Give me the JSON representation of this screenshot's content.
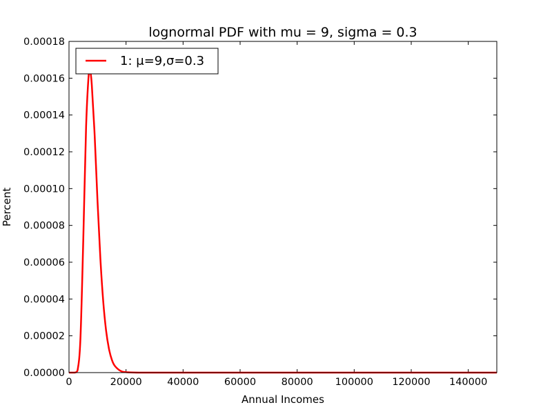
{
  "chart_data": {
    "type": "line",
    "title": "lognormal PDF with mu = 9, sigma = 0.3",
    "xlabel": "Annual Incomes",
    "ylabel": "Percent",
    "xlim": [
      0,
      150000
    ],
    "ylim": [
      0,
      0.00018
    ],
    "grid": false,
    "legend_position": "top-left",
    "x_ticks": [
      "0",
      "20000",
      "40000",
      "60000",
      "80000",
      "100000",
      "120000",
      "140000"
    ],
    "y_ticks": [
      "0.00000",
      "0.00002",
      "0.00004",
      "0.00006",
      "0.00008",
      "0.00010",
      "0.00012",
      "0.00014",
      "0.00016",
      "0.00018"
    ],
    "series": [
      {
        "name": "1: μ=9,σ=0.3",
        "color": "#ff0000",
        "x": [
          0,
          2000,
          3000,
          4000,
          5000,
          6000,
          7000,
          7500,
          8000,
          9000,
          10000,
          11000,
          12000,
          13000,
          14000,
          15000,
          16000,
          18000,
          20000,
          25000,
          30000,
          40000,
          60000,
          80000,
          100000,
          120000,
          150000
        ],
        "y": [
          0,
          6.5e-09,
          1.2e-06,
          1.82e-05,
          7.18e-05,
          0.0001339,
          0.0001637,
          0.0001632,
          0.0001562,
          0.0001289,
          9.31e-05,
          6.2e-05,
          3.87e-05,
          2.29e-05,
          1.3e-05,
          7.1e-06,
          3.8e-06,
          1e-06,
          2.5e-07,
          4.3e-09,
          1e-10,
          0,
          0,
          0,
          0,
          0,
          0
        ]
      }
    ]
  }
}
